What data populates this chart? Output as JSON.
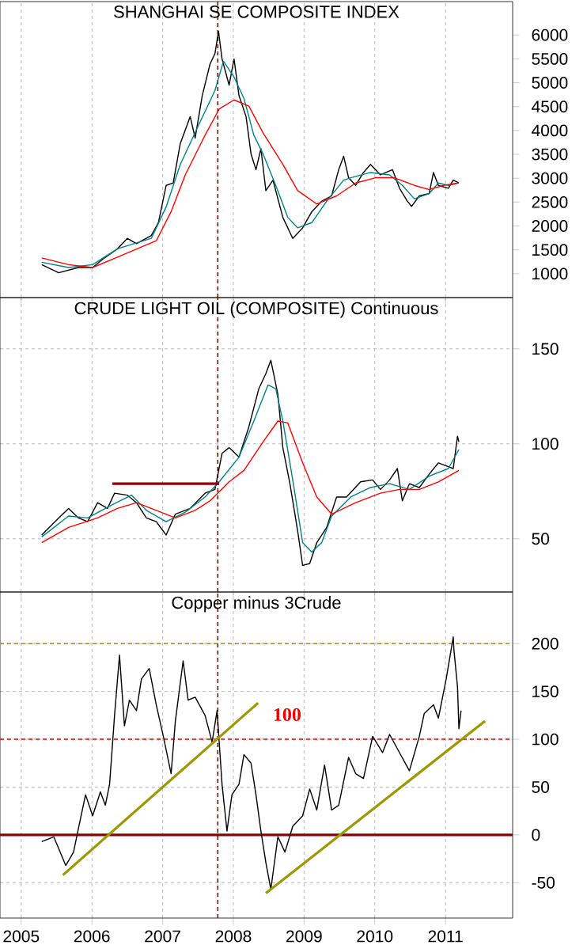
{
  "chart_data": [
    {
      "type": "line",
      "title": "SHANGHAI SE COMPOSITE INDEX",
      "xlim": [
        2004.7,
        2011.95
      ],
      "xticks": [
        2005,
        2006,
        2007,
        2008,
        2009,
        2010,
        2011
      ],
      "ylim": [
        500,
        6700
      ],
      "yticks": [
        1000,
        1500,
        2000,
        2500,
        3000,
        3500,
        4000,
        4500,
        5000,
        5500,
        6000
      ],
      "grid": "x",
      "tick_labels": "y",
      "series": [
        {
          "color": "#000000",
          "x": [
            2005.29,
            2005.53,
            2005.81,
            2006.01,
            2006.15,
            2006.36,
            2006.5,
            2006.63,
            2006.84,
            2006.94,
            2007.05,
            2007.15,
            2007.25,
            2007.39,
            2007.46,
            2007.56,
            2007.67,
            2007.74,
            2007.79,
            2007.84,
            2007.94,
            2008.01,
            2008.08,
            2008.18,
            2008.25,
            2008.32,
            2008.39,
            2008.46,
            2008.56,
            2008.7,
            2008.84,
            2008.98,
            2009.11,
            2009.25,
            2009.39,
            2009.49,
            2009.56,
            2009.63,
            2009.73,
            2009.84,
            2009.94,
            2010.08,
            2010.25,
            2010.35,
            2010.46,
            2010.52,
            2010.63,
            2010.77,
            2010.83,
            2010.9,
            2011.04,
            2011.11,
            2011.19
          ],
          "values": [
            1190,
            1020,
            1130,
            1130,
            1300,
            1520,
            1740,
            1630,
            1800,
            2070,
            2850,
            2900,
            3730,
            4290,
            3840,
            4730,
            5390,
            5610,
            6080,
            5500,
            4950,
            5500,
            4730,
            4290,
            3510,
            3180,
            3620,
            2740,
            2960,
            2180,
            1740,
            1960,
            2300,
            2520,
            2630,
            3180,
            3460,
            3010,
            2850,
            3120,
            3290,
            3070,
            3180,
            2790,
            2520,
            2410,
            2630,
            2680,
            3120,
            2850,
            2790,
            2960,
            2900
          ]
        },
        {
          "color": "#008080",
          "x": [
            2005.29,
            2005.67,
            2006.01,
            2006.36,
            2006.84,
            2007.05,
            2007.25,
            2007.53,
            2007.74,
            2007.86,
            2008.01,
            2008.15,
            2008.29,
            2008.42,
            2008.6,
            2008.77,
            2008.91,
            2009.11,
            2009.32,
            2009.56,
            2009.66,
            2009.94,
            2010.21,
            2010.39,
            2010.56,
            2010.77,
            2010.9,
            2011.04,
            2011.18
          ],
          "values": [
            1240,
            1130,
            1190,
            1520,
            1740,
            2400,
            3290,
            4180,
            4840,
            5450,
            5120,
            4670,
            3900,
            3510,
            2850,
            2180,
            1960,
            2070,
            2520,
            2960,
            3010,
            3120,
            3070,
            2850,
            2570,
            2680,
            2900,
            2850,
            2900
          ]
        },
        {
          "color": "#ff0000",
          "x": [
            2005.29,
            2005.67,
            2006.01,
            2006.29,
            2006.56,
            2006.91,
            2007.12,
            2007.32,
            2007.6,
            2007.8,
            2008.01,
            2008.22,
            2008.42,
            2008.7,
            2008.91,
            2009.18,
            2009.46,
            2009.73,
            2010.01,
            2010.28,
            2010.56,
            2010.77,
            2010.97,
            2011.18
          ],
          "values": [
            1330,
            1190,
            1130,
            1300,
            1470,
            1690,
            2300,
            3070,
            3900,
            4450,
            4640,
            4510,
            3950,
            3290,
            2740,
            2460,
            2630,
            2900,
            3010,
            3010,
            2850,
            2760,
            2850,
            2900
          ]
        }
      ],
      "ref_lines": [
        {
          "axis": "x",
          "value": 2007.78,
          "color": "#8b0000",
          "line_style": "dashed"
        }
      ]
    },
    {
      "type": "line",
      "title": "CRUDE LIGHT OIL (COMPOSITE) Continuous",
      "xlim": [
        2004.7,
        2011.95
      ],
      "xticks": [
        2005,
        2006,
        2007,
        2008,
        2009,
        2010,
        2011
      ],
      "ylim": [
        22,
        177
      ],
      "yticks": [
        50,
        100,
        150
      ],
      "grid": true,
      "tick_labels": "y",
      "series": [
        {
          "color": "#000000",
          "x": [
            2005.29,
            2005.53,
            2005.67,
            2005.81,
            2005.94,
            2006.08,
            2006.22,
            2006.32,
            2006.5,
            2006.63,
            2006.77,
            2006.91,
            2007.05,
            2007.18,
            2007.39,
            2007.6,
            2007.74,
            2007.84,
            2007.94,
            2008.08,
            2008.22,
            2008.36,
            2008.46,
            2008.53,
            2008.63,
            2008.7,
            2008.8,
            2008.91,
            2008.98,
            2009.08,
            2009.18,
            2009.32,
            2009.46,
            2009.6,
            2009.8,
            2009.97,
            2010.08,
            2010.21,
            2010.32,
            2010.39,
            2010.49,
            2010.63,
            2010.77,
            2010.9,
            2011.04,
            2011.11,
            2011.17,
            2011.19
          ],
          "values": [
            52,
            61,
            66,
            61,
            59,
            69,
            66,
            74,
            73,
            69,
            61,
            59,
            52,
            63,
            66,
            74,
            76,
            95,
            98,
            93,
            109,
            129,
            137,
            144,
            126,
            98,
            79,
            54,
            36,
            37,
            48,
            56,
            72,
            72,
            80,
            81,
            76,
            81,
            87,
            70,
            79,
            77,
            84,
            90,
            88,
            87,
            104,
            101
          ]
        },
        {
          "color": "#008080",
          "x": [
            2005.29,
            2005.67,
            2005.94,
            2006.29,
            2006.56,
            2006.77,
            2007.05,
            2007.32,
            2007.6,
            2007.8,
            2008.08,
            2008.29,
            2008.49,
            2008.6,
            2008.7,
            2008.84,
            2008.98,
            2009.11,
            2009.25,
            2009.39,
            2009.66,
            2009.94,
            2010.21,
            2010.49,
            2010.77,
            2011.04,
            2011.19
          ],
          "values": [
            51,
            62,
            61,
            68,
            73,
            65,
            59,
            64,
            72,
            80,
            93,
            112,
            131,
            129,
            112,
            81,
            48,
            43,
            48,
            62,
            72,
            77,
            79,
            76,
            83,
            87,
            97
          ]
        },
        {
          "color": "#ff0000",
          "x": [
            2005.29,
            2005.67,
            2006.08,
            2006.36,
            2006.63,
            2006.91,
            2007.18,
            2007.46,
            2007.67,
            2007.94,
            2008.15,
            2008.42,
            2008.63,
            2008.77,
            2008.98,
            2009.18,
            2009.39,
            2009.73,
            2010.08,
            2010.35,
            2010.63,
            2010.9,
            2011.19
          ],
          "values": [
            48,
            56,
            61,
            66,
            69,
            65,
            61,
            65,
            70,
            80,
            86,
            101,
            112,
            111,
            90,
            72,
            63,
            69,
            74,
            76,
            76,
            80,
            86
          ]
        },
        {
          "color": "#8b0000",
          "x": [
            2006.29,
            2007.8
          ],
          "values": [
            79,
            79
          ]
        }
      ],
      "ref_lines": [
        {
          "axis": "x",
          "value": 2007.78,
          "color": "#8b0000",
          "line_style": "dashed"
        }
      ]
    },
    {
      "type": "line",
      "title": "Copper minus 3Crude",
      "xlim": [
        2004.7,
        2011.95
      ],
      "xticks": [
        2005,
        2006,
        2007,
        2008,
        2009,
        2010,
        2011
      ],
      "ylim": [
        -87,
        254
      ],
      "yticks": [
        -50,
        0,
        50,
        100,
        150,
        200
      ],
      "grid": true,
      "series": [
        {
          "color": "#000000",
          "x": [
            2005.29,
            2005.46,
            2005.63,
            2005.74,
            2005.81,
            2005.91,
            2006.01,
            2006.12,
            2006.19,
            2006.25,
            2006.32,
            2006.39,
            2006.46,
            2006.53,
            2006.63,
            2006.7,
            2006.81,
            2006.91,
            2007.01,
            2007.12,
            2007.18,
            2007.29,
            2007.36,
            2007.46,
            2007.6,
            2007.7,
            2007.77,
            2007.84,
            2007.91,
            2007.98,
            2008.08,
            2008.15,
            2008.25,
            2008.32,
            2008.39,
            2008.46,
            2008.53,
            2008.63,
            2008.73,
            2008.84,
            2008.98,
            2009.08,
            2009.18,
            2009.29,
            2009.39,
            2009.49,
            2009.63,
            2009.73,
            2009.84,
            2009.97,
            2010.11,
            2010.21,
            2010.35,
            2010.49,
            2010.63,
            2010.7,
            2010.83,
            2010.9,
            2011.01,
            2011.11,
            2011.12,
            2011.17,
            2011.19,
            2011.22
          ],
          "values": [
            -7,
            -2,
            -32,
            -18,
            7,
            42,
            20,
            45,
            31,
            53,
            125,
            188,
            114,
            141,
            130,
            163,
            174,
            136,
            103,
            64,
            119,
            182,
            141,
            144,
            125,
            97,
            130,
            53,
            4,
            42,
            53,
            84,
            75,
            42,
            4,
            -29,
            -57,
            -2,
            -18,
            9,
            20,
            48,
            26,
            73,
            26,
            31,
            81,
            64,
            59,
            103,
            86,
            105,
            86,
            67,
            103,
            127,
            136,
            122,
            163,
            207,
            193,
            155,
            111,
            130
          ]
        },
        {
          "color": "#999900",
          "x": [
            2005.59,
            2008.35
          ],
          "values": [
            -42,
            138
          ]
        },
        {
          "color": "#999900",
          "x": [
            2008.46,
            2011.56
          ],
          "values": [
            -61,
            119
          ]
        }
      ],
      "ref_lines": [
        {
          "axis": "x",
          "value": 2007.78,
          "color": "#8b0000",
          "line_style": "dashed"
        },
        {
          "axis": "y",
          "value": 200,
          "color": "#999900",
          "line_style": "dashed"
        },
        {
          "axis": "y",
          "value": 100,
          "color": "#ee0000",
          "line_style": "dashed",
          "label": "100"
        },
        {
          "axis": "y",
          "value": 0,
          "color": "#8b0000",
          "line_style": "solid"
        }
      ]
    }
  ]
}
